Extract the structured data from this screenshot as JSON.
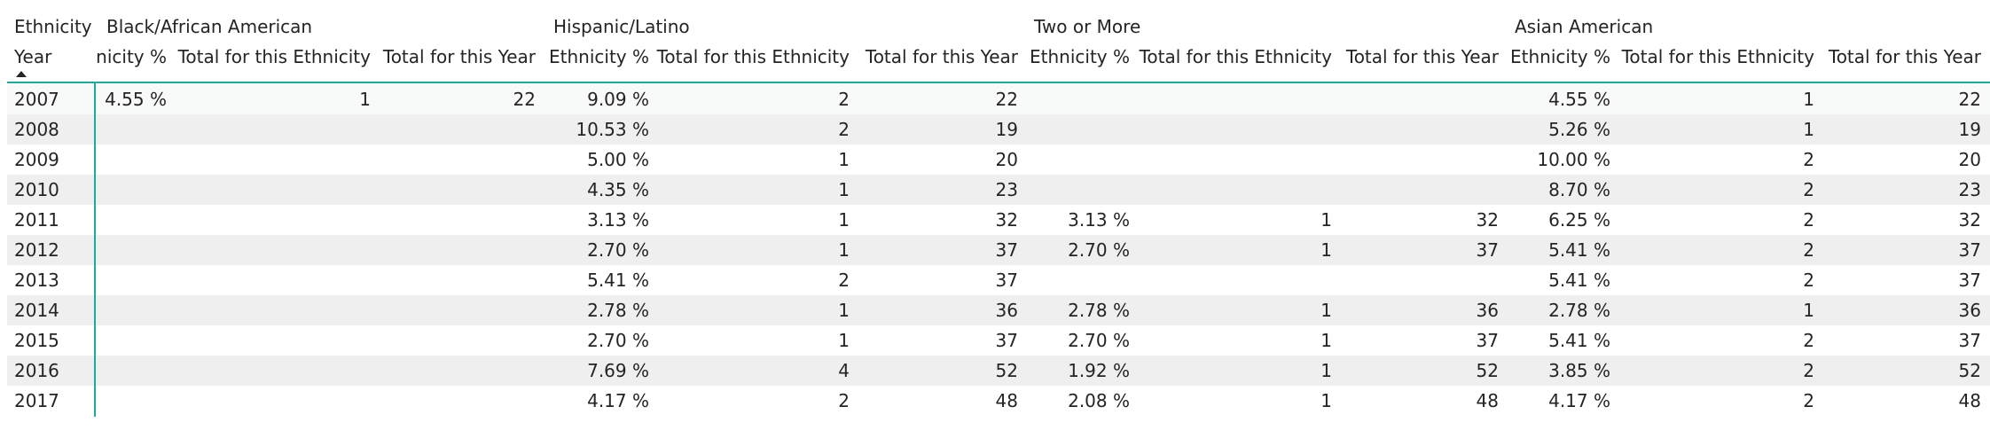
{
  "matrix": {
    "row_header_label": "Ethnicity",
    "year_label": "Year",
    "groups": [
      {
        "name": "Black/African American",
        "cols": [
          "Ethnicity %",
          "Total for this Ethnicity",
          "Total for this Year"
        ]
      },
      {
        "name": "Hispanic/Latino",
        "cols": [
          "Ethnicity %",
          "Total for this Ethnicity",
          "Total for this Year"
        ]
      },
      {
        "name": "Two or More",
        "cols": [
          "Ethnicity %",
          "Total for this Ethnicity",
          "Total for this Year"
        ]
      },
      {
        "name": "Asian American",
        "cols": [
          "Ethnicity %",
          "Total for this Ethnicity",
          "Total for this Year"
        ]
      }
    ],
    "rows": [
      {
        "year": "2007",
        "cells": [
          [
            "4.55 %",
            "1",
            "22"
          ],
          [
            "9.09 %",
            "2",
            "22"
          ],
          [
            "",
            "",
            ""
          ],
          [
            "4.55 %",
            "1",
            "22"
          ]
        ]
      },
      {
        "year": "2008",
        "cells": [
          [
            "",
            "",
            ""
          ],
          [
            "10.53 %",
            "2",
            "19"
          ],
          [
            "",
            "",
            ""
          ],
          [
            "5.26 %",
            "1",
            "19"
          ]
        ]
      },
      {
        "year": "2009",
        "cells": [
          [
            "",
            "",
            ""
          ],
          [
            "5.00 %",
            "1",
            "20"
          ],
          [
            "",
            "",
            ""
          ],
          [
            "10.00 %",
            "2",
            "20"
          ]
        ]
      },
      {
        "year": "2010",
        "cells": [
          [
            "",
            "",
            ""
          ],
          [
            "4.35 %",
            "1",
            "23"
          ],
          [
            "",
            "",
            ""
          ],
          [
            "8.70 %",
            "2",
            "23"
          ]
        ]
      },
      {
        "year": "2011",
        "cells": [
          [
            "",
            "",
            ""
          ],
          [
            "3.13 %",
            "1",
            "32"
          ],
          [
            "3.13 %",
            "1",
            "32"
          ],
          [
            "6.25 %",
            "2",
            "32"
          ]
        ]
      },
      {
        "year": "2012",
        "cells": [
          [
            "",
            "",
            ""
          ],
          [
            "2.70 %",
            "1",
            "37"
          ],
          [
            "2.70 %",
            "1",
            "37"
          ],
          [
            "5.41 %",
            "2",
            "37"
          ]
        ]
      },
      {
        "year": "2013",
        "cells": [
          [
            "",
            "",
            ""
          ],
          [
            "5.41 %",
            "2",
            "37"
          ],
          [
            "",
            "",
            ""
          ],
          [
            "5.41 %",
            "2",
            "37"
          ]
        ]
      },
      {
        "year": "2014",
        "cells": [
          [
            "",
            "",
            ""
          ],
          [
            "2.78 %",
            "1",
            "36"
          ],
          [
            "2.78 %",
            "1",
            "36"
          ],
          [
            "2.78 %",
            "1",
            "36"
          ]
        ]
      },
      {
        "year": "2015",
        "cells": [
          [
            "",
            "",
            ""
          ],
          [
            "2.70 %",
            "1",
            "37"
          ],
          [
            "2.70 %",
            "1",
            "37"
          ],
          [
            "5.41 %",
            "2",
            "37"
          ]
        ]
      },
      {
        "year": "2016",
        "cells": [
          [
            "",
            "",
            ""
          ],
          [
            "7.69 %",
            "4",
            "52"
          ],
          [
            "1.92 %",
            "1",
            "52"
          ],
          [
            "3.85 %",
            "2",
            "52"
          ]
        ]
      },
      {
        "year": "2017",
        "cells": [
          [
            "",
            "",
            ""
          ],
          [
            "4.17 %",
            "2",
            "48"
          ],
          [
            "2.08 %",
            "1",
            "48"
          ],
          [
            "4.17 %",
            "2",
            "48"
          ]
        ]
      }
    ],
    "colors": {
      "accent": "#1aab9b",
      "band": "#efefef",
      "text": "#252423"
    }
  }
}
